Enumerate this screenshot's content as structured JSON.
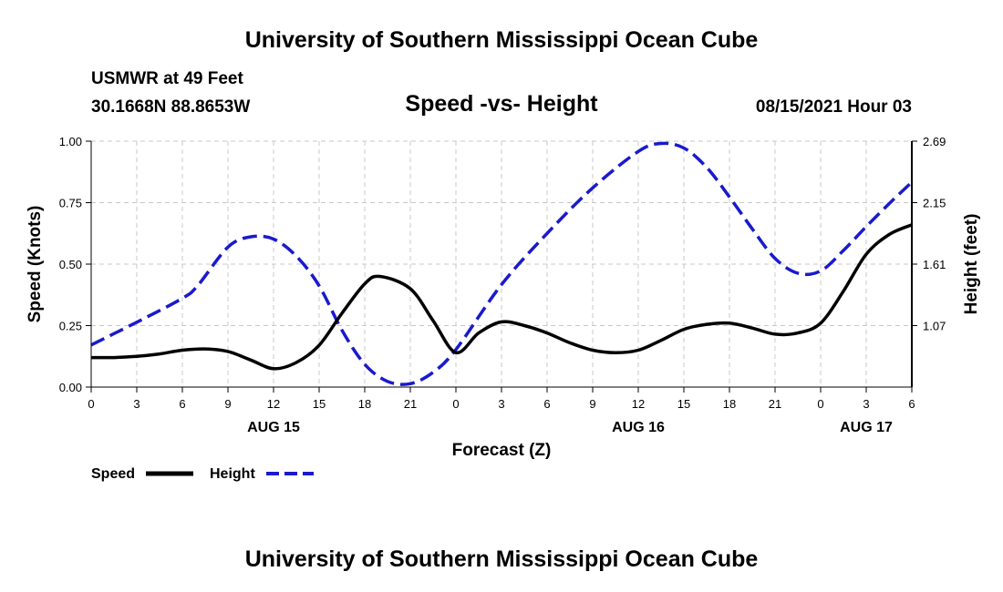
{
  "header": {
    "title": "University of Southern Mississippi Ocean Cube",
    "station": "USMWR at 49 Feet",
    "coords": "30.1668N  88.8653W",
    "datetime": "08/15/2021 Hour 03"
  },
  "footer": {
    "title": "University of Southern Mississippi Ocean Cube"
  },
  "colors": {
    "speed": "#000000",
    "height": "#1a1acc",
    "grid": "#c8c8c8"
  },
  "chart_data": {
    "type": "line",
    "title": "Speed -vs- Height",
    "xlabel": "Forecast (Z)",
    "ylabel": "Speed (Knots)",
    "ylabel_right": "Height (feet)",
    "x_range_hours": [
      0,
      54
    ],
    "x_tick_labels": [
      "0",
      "3",
      "6",
      "9",
      "12",
      "15",
      "18",
      "21",
      "0",
      "3",
      "6",
      "9",
      "12",
      "15",
      "18",
      "21",
      "0",
      "3",
      "6"
    ],
    "date_labels": [
      {
        "label": "AUG 15",
        "hour": 12
      },
      {
        "label": "AUG 16",
        "hour": 36
      },
      {
        "label": "AUG 17",
        "hour": 51
      }
    ],
    "ylim_left": [
      0,
      1
    ],
    "left_ticks": [
      "0.00",
      "0.25",
      "0.50",
      "0.75",
      "1.00"
    ],
    "ylim_right": [
      0.53,
      2.69
    ],
    "right_ticks": [
      "1.07",
      "1.61",
      "2.15",
      "2.69"
    ],
    "grid": true,
    "series": [
      {
        "name": "Speed",
        "axis": "left",
        "x": [
          0,
          1.5,
          3,
          4.5,
          6,
          7.5,
          9,
          10.5,
          12,
          13.5,
          15,
          16.5,
          18,
          19,
          21,
          22.5,
          24,
          25.5,
          27,
          28.5,
          30,
          31.5,
          33,
          34.5,
          36,
          37.5,
          39,
          40.5,
          42,
          43.5,
          45,
          46.5,
          48,
          49.5,
          51,
          52.5,
          54
        ],
        "values": [
          0.12,
          0.12,
          0.125,
          0.135,
          0.15,
          0.155,
          0.145,
          0.11,
          0.075,
          0.1,
          0.17,
          0.3,
          0.42,
          0.45,
          0.4,
          0.27,
          0.14,
          0.22,
          0.265,
          0.25,
          0.22,
          0.18,
          0.15,
          0.14,
          0.15,
          0.19,
          0.235,
          0.255,
          0.26,
          0.24,
          0.215,
          0.22,
          0.26,
          0.39,
          0.54,
          0.62,
          0.66
        ]
      },
      {
        "name": "Height",
        "axis": "right",
        "x": [
          0,
          3,
          6,
          7,
          9,
          10.5,
          12,
          13.5,
          15,
          16.5,
          18,
          19.5,
          21,
          22.5,
          24,
          27,
          30,
          33,
          36,
          37.5,
          39,
          40.5,
          42,
          43.5,
          45,
          46.5,
          48,
          49.5,
          51,
          52.5,
          54
        ],
        "values": [
          0.9,
          1.1,
          1.31,
          1.42,
          1.76,
          1.85,
          1.83,
          1.68,
          1.42,
          1.03,
          0.73,
          0.58,
          0.56,
          0.66,
          0.86,
          1.43,
          1.88,
          2.28,
          2.6,
          2.67,
          2.63,
          2.46,
          2.2,
          1.92,
          1.66,
          1.53,
          1.55,
          1.73,
          1.94,
          2.14,
          2.33
        ]
      }
    ]
  }
}
